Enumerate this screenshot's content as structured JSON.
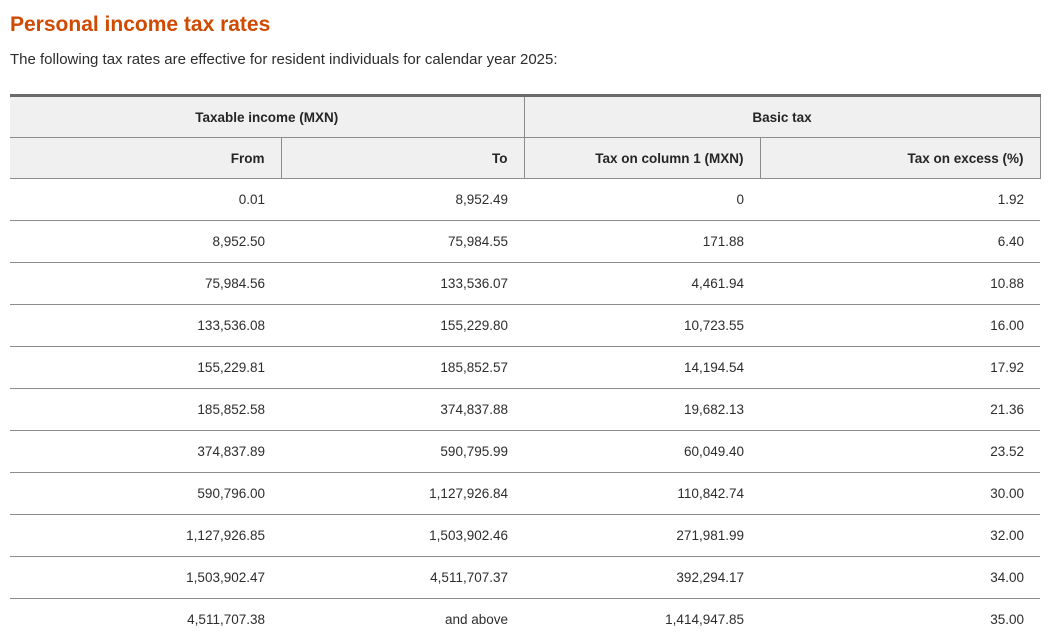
{
  "page": {
    "title": "Personal income tax rates",
    "subtitle": "The following tax rates are effective for resident individuals for calendar year 2025:"
  },
  "colors": {
    "accent_orange": "#d04a02",
    "header_background": "#f0f0f0",
    "border_dark": "#6a6a6a",
    "border_light": "#8c8c8c",
    "text": "#2d2d2d"
  },
  "table": {
    "group_headers": [
      {
        "label": "Taxable income (MXN)",
        "span": 2
      },
      {
        "label": "Basic tax",
        "span": 2
      }
    ],
    "columns": [
      "From",
      "To",
      "Tax on column 1 (MXN)",
      "Tax on excess (%)"
    ],
    "rows": [
      [
        "0.01",
        "8,952.49",
        "0",
        "1.92"
      ],
      [
        "8,952.50",
        "75,984.55",
        "171.88",
        "6.40"
      ],
      [
        "75,984.56",
        "133,536.07",
        "4,461.94",
        "10.88"
      ],
      [
        "133,536.08",
        "155,229.80",
        "10,723.55",
        "16.00"
      ],
      [
        "155,229.81",
        "185,852.57",
        "14,194.54",
        "17.92"
      ],
      [
        "185,852.58",
        "374,837.88",
        "19,682.13",
        "21.36"
      ],
      [
        "374,837.89",
        "590,795.99",
        "60,049.40",
        "23.52"
      ],
      [
        "590,796.00",
        "1,127,926.84",
        "110,842.74",
        "30.00"
      ],
      [
        "1,127,926.85",
        "1,503,902.46",
        "271,981.99",
        "32.00"
      ],
      [
        "1,503,902.47",
        "4,511,707.37",
        "392,294.17",
        "34.00"
      ],
      [
        "4,511,707.38",
        "and above",
        "1,414,947.85",
        "35.00"
      ]
    ]
  }
}
